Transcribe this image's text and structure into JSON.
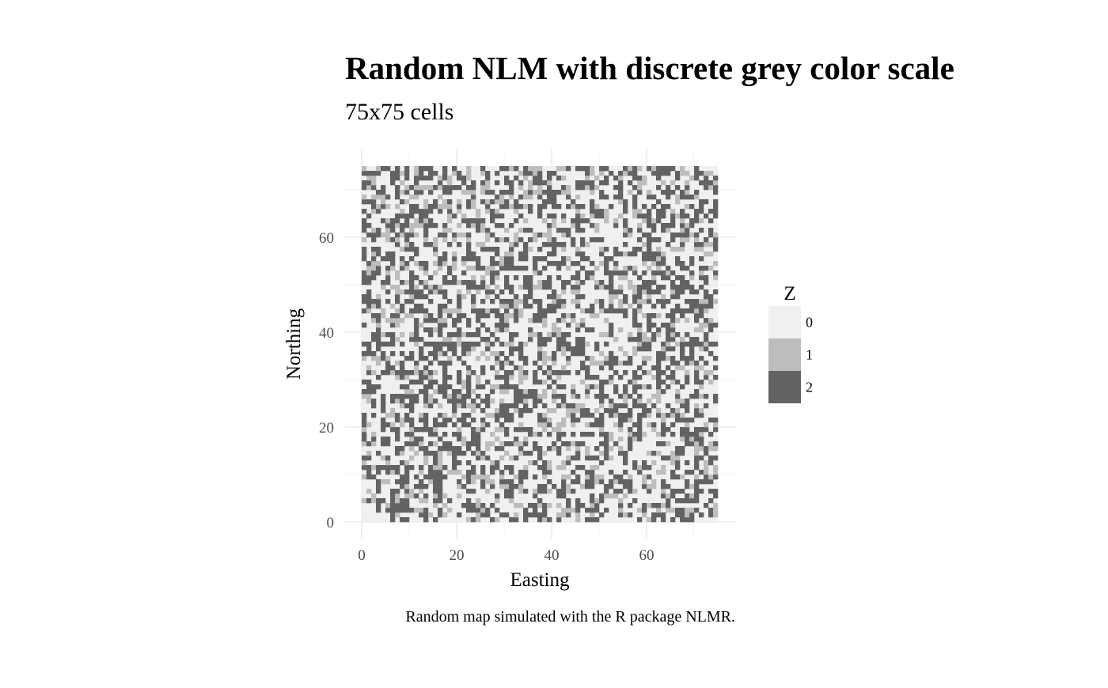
{
  "chart_data": {
    "type": "heatmap",
    "title": "Random NLM with discrete grey color scale",
    "subtitle": "75x75 cells",
    "caption": "Random map simulated with the R package NLMR.",
    "xlabel": "Easting",
    "ylabel": "Northing",
    "xlim": [
      0,
      75
    ],
    "ylim": [
      0,
      75
    ],
    "x_ticks": [
      0,
      20,
      40,
      60
    ],
    "y_ticks": [
      0,
      20,
      40,
      60
    ],
    "grid": true,
    "grid_dims": [
      75,
      75
    ],
    "legend": {
      "title": "Z",
      "position": "right",
      "entries": [
        {
          "label": "0",
          "color": "#f0f0f0"
        },
        {
          "label": "1",
          "color": "#bdbdbd"
        },
        {
          "label": "2",
          "color": "#636363"
        }
      ]
    },
    "class_proportions": [
      0.5,
      0.15,
      0.35
    ]
  }
}
